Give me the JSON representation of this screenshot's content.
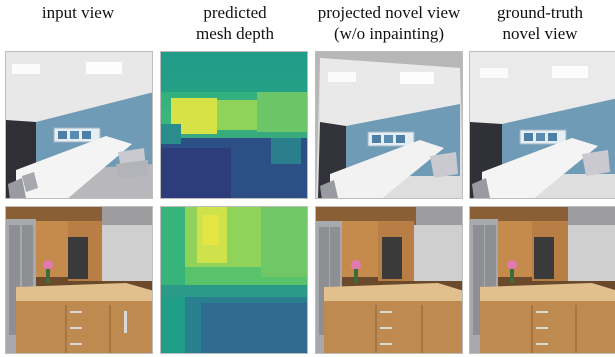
{
  "columns": [
    {
      "line1": "input view",
      "line2": ""
    },
    {
      "line1": "predicted",
      "line2": "mesh depth"
    },
    {
      "line1": "projected novel view",
      "line2": "(w/o inpainting)"
    },
    {
      "line1": "ground-truth",
      "line2": "novel view"
    }
  ],
  "rows": [
    {
      "scene": "conference-room"
    },
    {
      "scene": "kitchen"
    }
  ],
  "colors": {
    "wall_blue": "#6f9bb6",
    "depth_far_yellow": "#d9e34a",
    "depth_mid_teal": "#2a9a8c",
    "depth_near_navy": "#2d3c7a",
    "wood": "#b9834a"
  }
}
